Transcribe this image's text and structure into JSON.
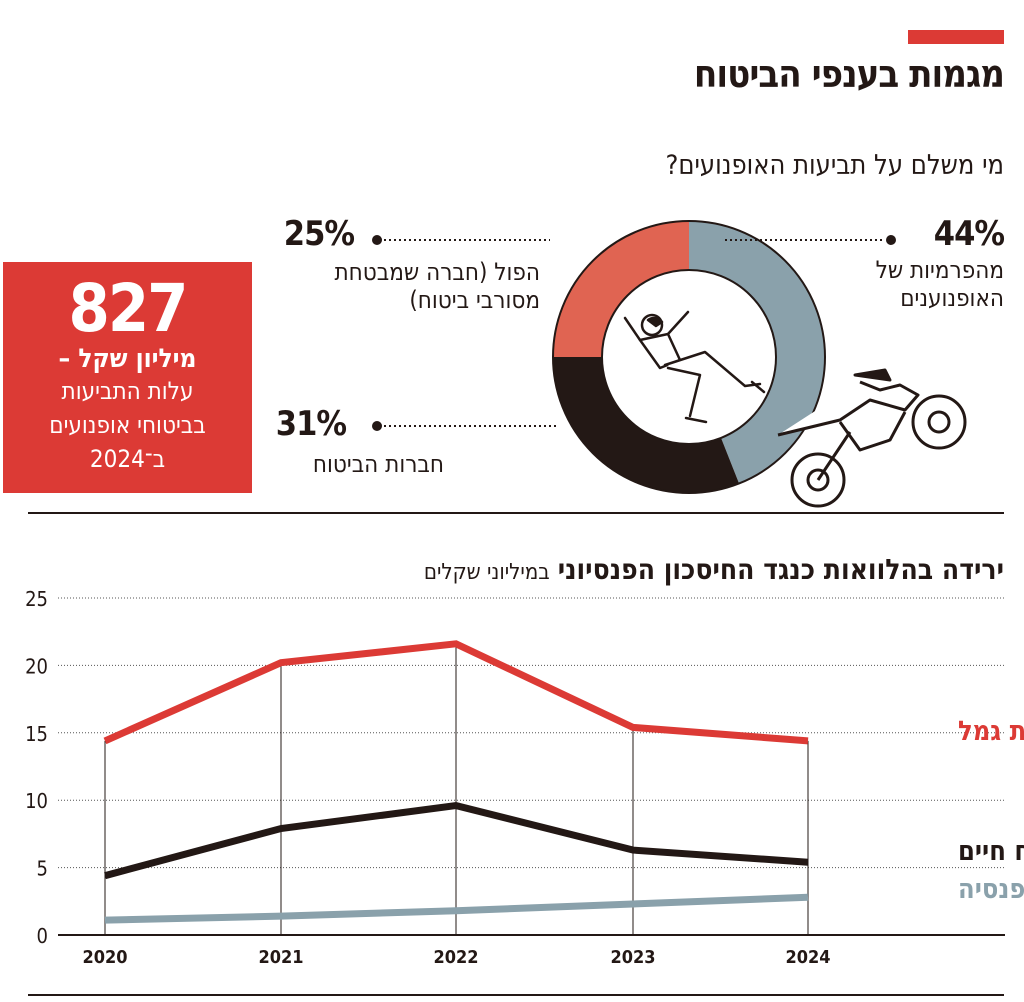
{
  "header": {
    "title": "מגמות בענפי הביטוח",
    "accent_color": "#dc3a35"
  },
  "donut": {
    "question": "מי משלם על תביעות האופנועים?",
    "illustration_icons": [
      "falling-person-icon",
      "motorcycle-icon"
    ],
    "segments": [
      {
        "value": 44,
        "pct_label": "44%",
        "label_lines": [
          "מהפרמיות של",
          "האופנוענים"
        ],
        "color": "#8aa1ab"
      },
      {
        "value": 31,
        "pct_label": "31%",
        "label_lines": [
          "חברות הביטוח"
        ],
        "color": "#231815"
      },
      {
        "value": 25,
        "pct_label": "25%",
        "label_lines": [
          "הפול (חברה שמבטחת",
          "מסורבי ביטוח)"
        ],
        "color": "#e06452"
      }
    ]
  },
  "highlight_box": {
    "number": "827",
    "unit": "מיליון שקל –",
    "description_lines": [
      "עלות התביעות",
      "בביטוחי אופנועים",
      "ב־2024"
    ],
    "color": "#dc3a35"
  },
  "chart_data": {
    "type": "line",
    "title": "ירידה בהלוואות כנגד החיסכון הפנסיוני",
    "subtitle": "במיליוני שקלים",
    "x": [
      "2020",
      "2021",
      "2022",
      "2023",
      "2024"
    ],
    "ylim": [
      0,
      25
    ],
    "yticks": [
      0,
      5,
      10,
      15,
      20,
      25
    ],
    "grid": true,
    "legend": "inline-right",
    "series": [
      {
        "name": "קופות גמל",
        "values": [
          14.4,
          20.2,
          21.6,
          15.4,
          14.4
        ],
        "color": "#dc3a35"
      },
      {
        "name": "ביטוח חיים",
        "values": [
          4.4,
          7.9,
          9.6,
          6.3,
          5.4
        ],
        "color": "#231815"
      },
      {
        "name": "קרנות הפנסיה",
        "values": [
          1.1,
          1.4,
          1.8,
          2.3,
          2.8
        ],
        "color": "#8aa1ab"
      }
    ]
  }
}
